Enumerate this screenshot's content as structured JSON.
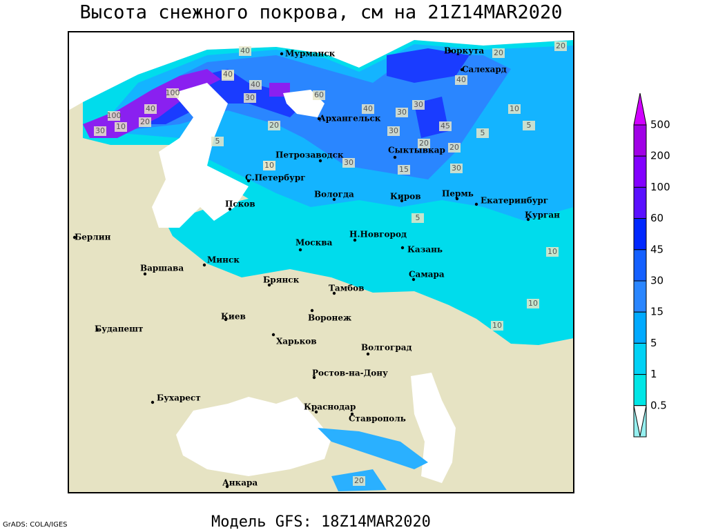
{
  "header": {
    "title": "Высота снежного покрова, см на 21Z14MAR2020"
  },
  "footer": {
    "model": "Модель GFS: 18Z14MAR2020",
    "credit": "GrADS: COLA/IGES"
  },
  "legend": {
    "labels": [
      "500",
      "200",
      "100",
      "60",
      "45",
      "30",
      "15",
      "5",
      "1",
      "0.5"
    ]
  },
  "cities": [
    "Мурманск",
    "Воркута",
    "Салехард",
    "Архангельск",
    "Петрозаводск",
    "Сыктывкар",
    "С.Петербург",
    "Вологда",
    "Киров",
    "Пермь",
    "Екатеринбург",
    "Псков",
    "Курган",
    "Берлин",
    "Москва",
    "Н.Новгород",
    "Казань",
    "Минск",
    "Варшава",
    "Брянск",
    "Самара",
    "Тамбов",
    "Киев",
    "Воронеж",
    "Будапешт",
    "Харьков",
    "Волгоград",
    "Ростов-на-Дону",
    "Бухарест",
    "Краснодар",
    "Ставрополь",
    "Анкара"
  ],
  "contour_labels": [
    "40",
    "20",
    "40",
    "30",
    "40",
    "60",
    "100",
    "40",
    "20",
    "100",
    "30",
    "10",
    "20",
    "5",
    "10",
    "40",
    "30",
    "30",
    "30",
    "45",
    "20",
    "30",
    "10",
    "5",
    "5",
    "20",
    "20",
    "40",
    "20",
    "15",
    "30",
    "10",
    "10",
    "10",
    "10",
    "5",
    "20"
  ]
}
